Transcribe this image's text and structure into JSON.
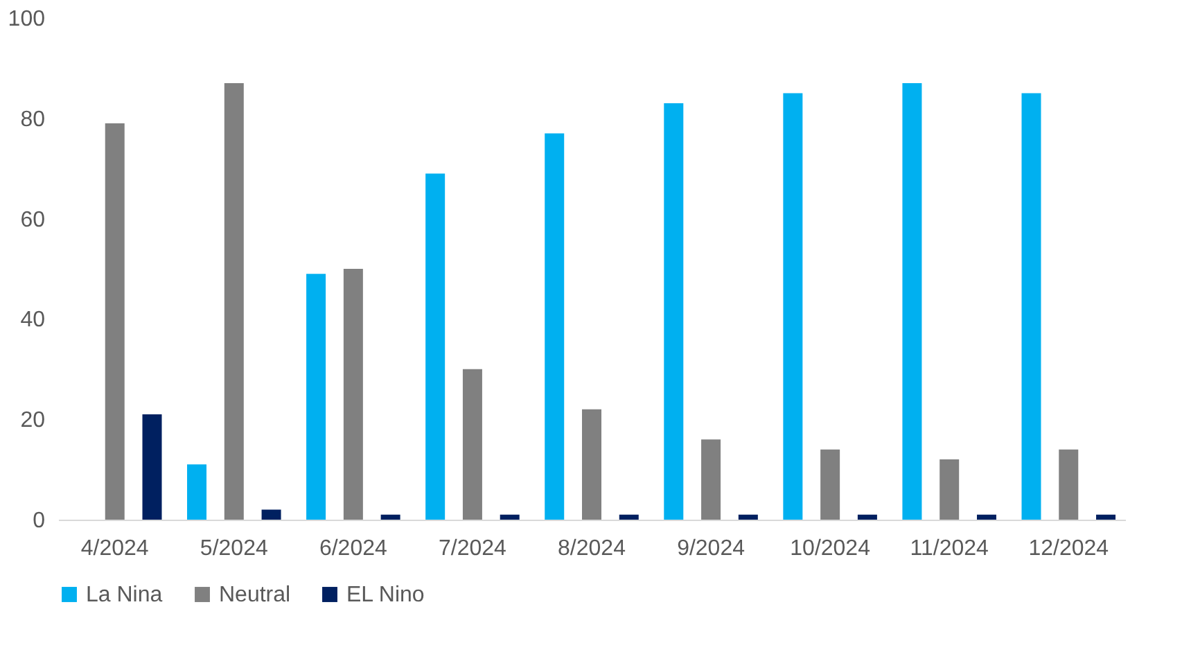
{
  "chart_data": {
    "type": "bar",
    "categories": [
      "4/2024",
      "5/2024",
      "6/2024",
      "7/2024",
      "8/2024",
      "9/2024",
      "10/2024",
      "11/2024",
      "12/2024"
    ],
    "series": [
      {
        "name": "La Nina",
        "color": "#00b0f0",
        "values": [
          0,
          11,
          49,
          69,
          77,
          83,
          85,
          87,
          85
        ]
      },
      {
        "name": "Neutral",
        "color": "#808080",
        "values": [
          79,
          87,
          50,
          30,
          22,
          16,
          14,
          12,
          14
        ]
      },
      {
        "name": "EL Nino",
        "color": "#002060",
        "values": [
          21,
          2,
          1,
          1,
          1,
          1,
          1,
          1,
          1
        ]
      }
    ],
    "ylim": [
      0,
      100
    ],
    "yticks": [
      0,
      20,
      40,
      60,
      80,
      100
    ],
    "grid": false,
    "legend": "bottom"
  }
}
